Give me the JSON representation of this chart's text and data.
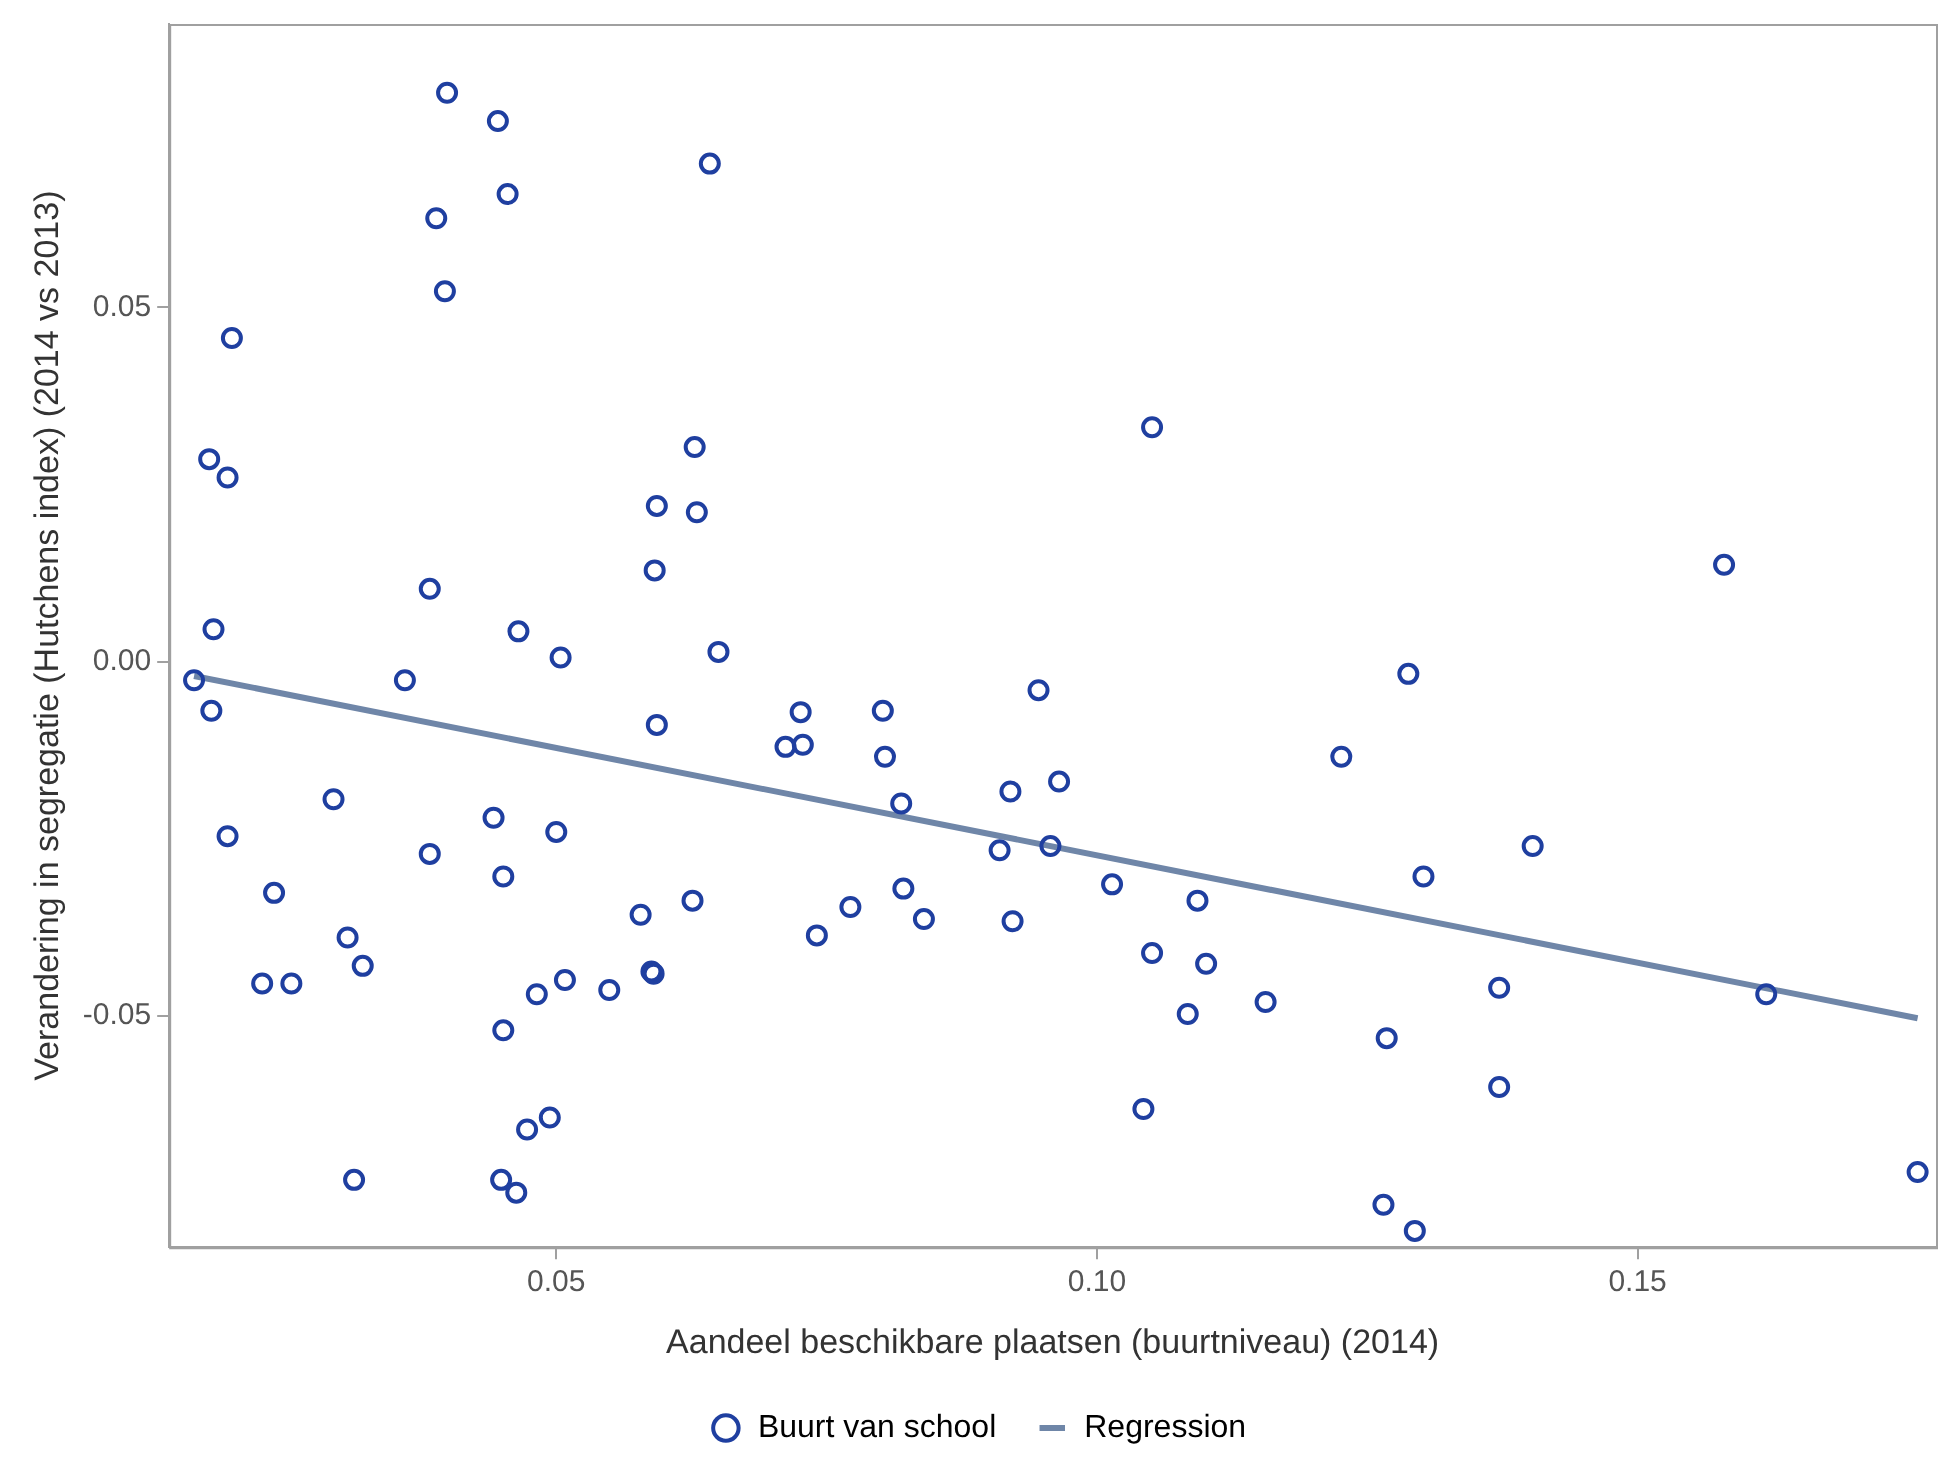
{
  "chart_data": {
    "type": "scatter",
    "xlabel": "Aandeel beschikbare plaatsen (buurtniveau) (2014)",
    "ylabel": "Verandering in segregatie (Hutchens index) (2014 vs 2013)",
    "xlim": [
      0.0142,
      0.1776
    ],
    "ylim": [
      -0.0826,
      0.09
    ],
    "xticks": [
      {
        "value": 0.05,
        "label": "0.05"
      },
      {
        "value": 0.1,
        "label": "0.10"
      },
      {
        "value": 0.15,
        "label": "0.15"
      }
    ],
    "yticks": [
      {
        "value": -0.05,
        "label": "-0.05"
      },
      {
        "value": 0,
        "label": "0.00"
      },
      {
        "value": 0.05,
        "label": "0.05"
      }
    ],
    "grid": false,
    "legend": "bottom",
    "marker": "circle",
    "series": [
      {
        "name": "Buurt van school",
        "color": "#1f3fa0",
        "x": [
          0.0165,
          0.0179,
          0.0183,
          0.0181,
          0.0196,
          0.02,
          0.0196,
          0.0239,
          0.0228,
          0.0255,
          0.0294,
          0.0307,
          0.0321,
          0.0313,
          0.036,
          0.0383,
          0.0383,
          0.0389,
          0.0399,
          0.0397,
          0.0446,
          0.0455,
          0.0442,
          0.0451,
          0.0451,
          0.0449,
          0.0463,
          0.0465,
          0.0473,
          0.0482,
          0.0494,
          0.05,
          0.0504,
          0.0508,
          0.0549,
          0.0578,
          0.0588,
          0.059,
          0.0591,
          0.0593,
          0.0593,
          0.0628,
          0.063,
          0.0626,
          0.0642,
          0.065,
          0.0712,
          0.0726,
          0.0728,
          0.0741,
          0.0772,
          0.0802,
          0.0804,
          0.0819,
          0.0821,
          0.084,
          0.091,
          0.092,
          0.0922,
          0.0946,
          0.0957,
          0.0965,
          0.1014,
          0.1043,
          0.1051,
          0.1051,
          0.158,
          0.1288,
          0.1226,
          0.1403,
          0.1302,
          0.1093,
          0.1101,
          0.1084,
          0.1156,
          0.1372,
          0.1619,
          0.1268,
          0.1372,
          0.1759,
          0.1265,
          0.1294
        ],
        "values": [
          -0.0026,
          0.0286,
          0.0046,
          -0.0069,
          0.026,
          0.0457,
          -0.0246,
          -0.0326,
          -0.0454,
          -0.0454,
          -0.0194,
          -0.0389,
          -0.0429,
          -0.0731,
          -0.0026,
          0.0103,
          -0.0271,
          0.0626,
          0.0803,
          0.0523,
          0.0763,
          0.066,
          -0.022,
          -0.0303,
          -0.052,
          -0.0731,
          -0.0749,
          0.0043,
          -0.066,
          -0.0469,
          -0.0643,
          -0.024,
          0.0006,
          -0.0449,
          -0.0463,
          -0.0357,
          -0.0437,
          -0.044,
          0.0129,
          0.022,
          -0.0089,
          0.0303,
          0.0211,
          -0.0337,
          0.0703,
          0.0014,
          -0.012,
          -0.0071,
          -0.0117,
          -0.0386,
          -0.0346,
          -0.0069,
          -0.0134,
          -0.02,
          -0.032,
          -0.0363,
          -0.0266,
          -0.0183,
          -0.0366,
          -0.004,
          -0.026,
          -0.0169,
          -0.0314,
          -0.0631,
          0.0331,
          -0.0411,
          0.0137,
          -0.0017,
          -0.0134,
          -0.026,
          -0.0303,
          -0.0337,
          -0.0426,
          -0.0497,
          -0.048,
          -0.046,
          -0.0469,
          -0.0531,
          -0.06,
          -0.072,
          -0.0766,
          -0.0803
        ]
      },
      {
        "name": "Regression",
        "type": "line",
        "color": "#6f86a8",
        "line_style": "solid",
        "marker": "none",
        "x": [
          0.0165,
          0.1759
        ],
        "values": [
          -0.002,
          -0.0503
        ]
      }
    ]
  }
}
